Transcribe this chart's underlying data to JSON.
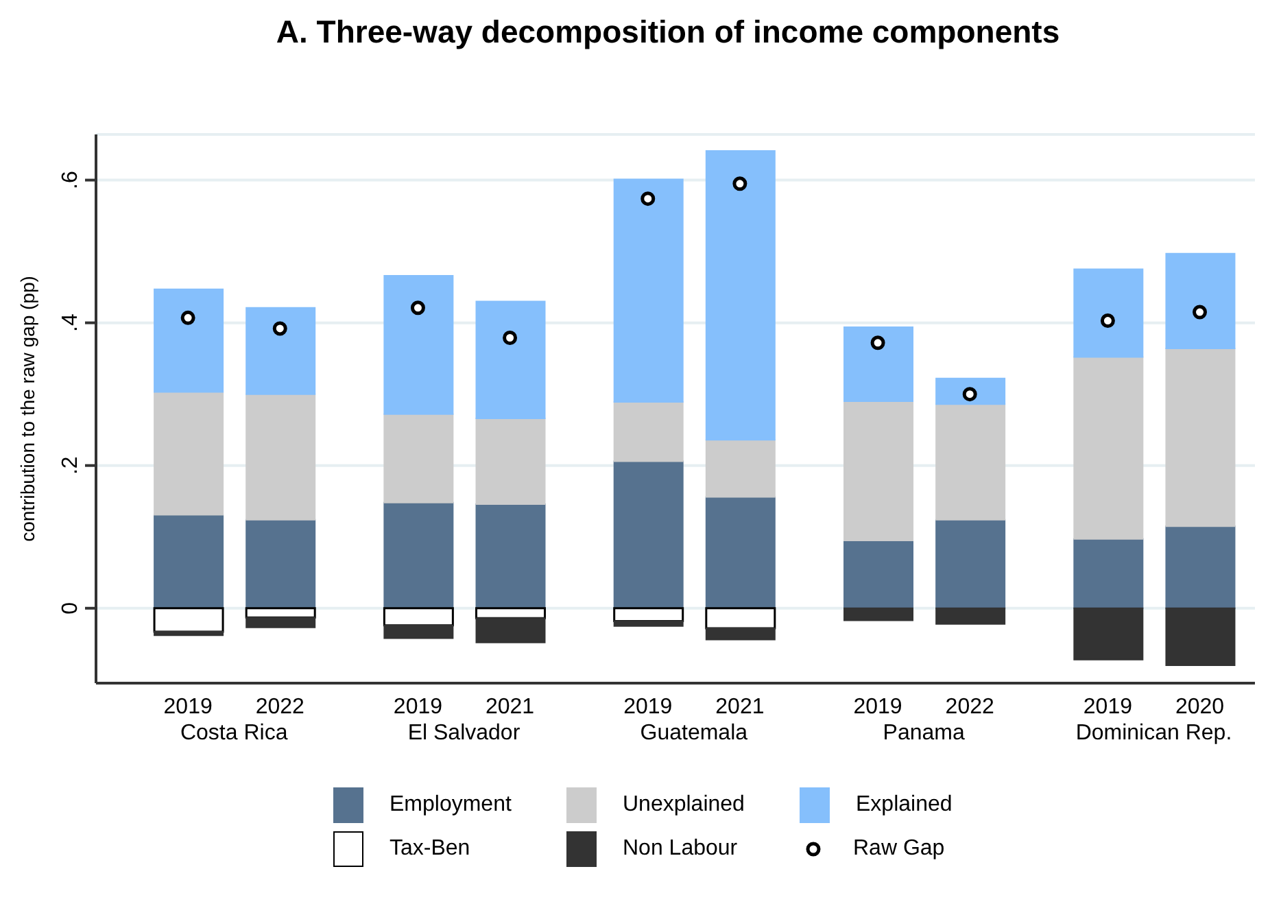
{
  "chart_data": {
    "type": "bar",
    "stacked": true,
    "title": "A.   Three-way decomposition of income components",
    "ylabel": "contribution to the raw gap (pp)",
    "categories": [
      "2019",
      "2022",
      "2019",
      "2021",
      "2019",
      "2021",
      "2019",
      "2022",
      "2019",
      "2020"
    ],
    "annotations": [
      "Costa Rica",
      "El Salvador",
      "Guatemala",
      "Panama",
      "Dominican Rep."
    ],
    "series": [
      {
        "name": "Employment",
        "color": "#56728f",
        "values": [
          0.131,
          0.124,
          0.148,
          0.146,
          0.206,
          0.156,
          0.095,
          0.124,
          0.097,
          0.115
        ]
      },
      {
        "name": "Unexplained",
        "color": "#cccccc",
        "values": [
          0.172,
          0.176,
          0.124,
          0.12,
          0.083,
          0.08,
          0.195,
          0.162,
          0.255,
          0.249
        ]
      },
      {
        "name": "Explained",
        "color": "#85bffc",
        "values": [
          0.144,
          0.121,
          0.194,
          0.164,
          0.312,
          0.405,
          0.104,
          0.036,
          0.123,
          0.133
        ]
      },
      {
        "name": "Tax-Ben",
        "color": "#ffffff",
        "values": [
          -0.033,
          -0.013,
          -0.024,
          -0.014,
          -0.018,
          -0.028,
          null,
          0,
          0,
          0
        ]
      },
      {
        "name": "Non Labour",
        "color": "#333333",
        "values": [
          -0.005,
          -0.014,
          -0.018,
          -0.034,
          -0.007,
          -0.016,
          -0.017,
          -0.022,
          -0.072,
          -0.08
        ]
      },
      {
        "name": "Raw Gap",
        "type": "scatter",
        "color": "#ffffff",
        "values": [
          0.407,
          0.392,
          0.421,
          0.379,
          0.574,
          0.595,
          0.372,
          0.3,
          0.403,
          0.415
        ]
      }
    ],
    "ylim": [
      -0.105,
      0.664
    ],
    "yticks": [
      0,
      {
        "value": 0.2,
        "label": ".2"
      },
      {
        "value": 0.4,
        "label": ".4"
      },
      {
        "value": 0.6,
        "label": ".6"
      }
    ],
    "grid": "y",
    "legend": "bottom",
    "marker": "circle"
  }
}
